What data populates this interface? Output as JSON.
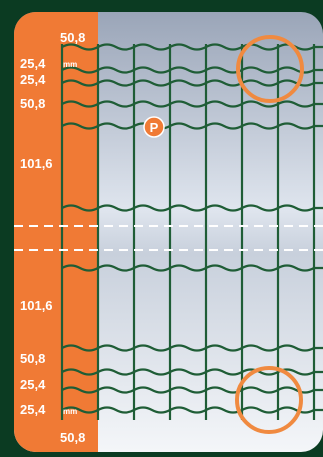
{
  "labels": {
    "top_50": "50,8",
    "top_25a": "25,4",
    "top_25b": "25,4",
    "top_mm": "mm",
    "top_50b": "50,8",
    "top_101": "101,6",
    "bottom_101": "101,6",
    "bottom_50": "50,8",
    "bottom_25a": "25,4",
    "bottom_25b": "25,4",
    "bottom_mm": "mm",
    "bottom_50b": "50,8"
  },
  "marker": {
    "letter": "P"
  },
  "colors": {
    "background": "#0b3b22",
    "orange": "#f07a35",
    "wire": "#1f5d36",
    "panel_light": "#eef2f6",
    "panel_dark": "#9aa5b8",
    "circle": "#f08a40"
  }
}
